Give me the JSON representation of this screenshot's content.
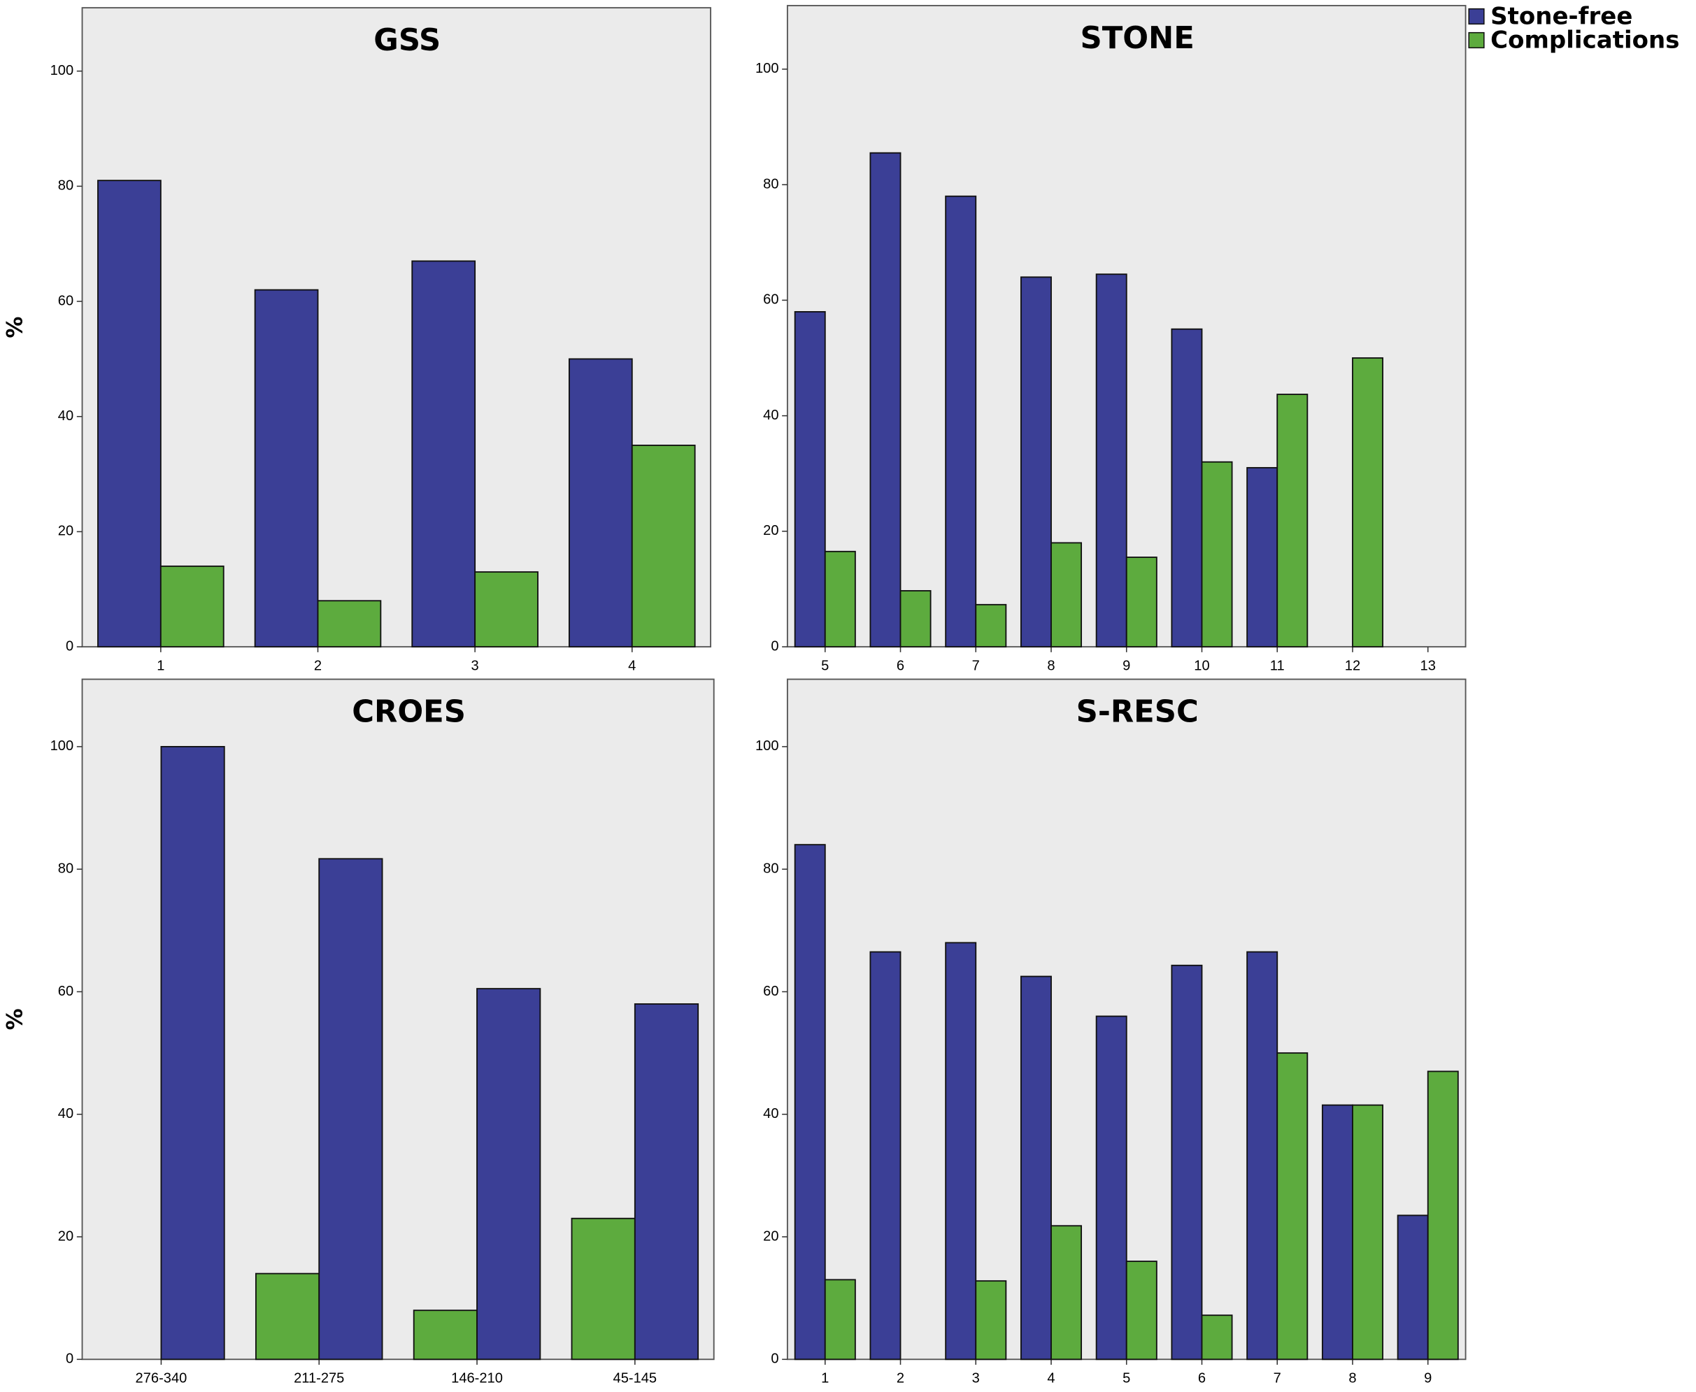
{
  "chart_data": [
    {
      "type": "bar",
      "title": "GSS",
      "ylabel": "%",
      "categories": [
        "1",
        "2",
        "3",
        "4"
      ],
      "series": [
        {
          "name": "Stone-free",
          "color": "#3b3f96",
          "values": [
            81,
            62,
            67,
            50
          ]
        },
        {
          "name": "Complications",
          "color": "#5dab3e",
          "values": [
            14,
            8,
            13,
            35
          ]
        }
      ],
      "ylim": [
        0,
        111
      ],
      "yticks": [
        0,
        20,
        40,
        60,
        80,
        100
      ]
    },
    {
      "type": "bar",
      "title": "STONE",
      "categories": [
        "5",
        "6",
        "7",
        "8",
        "9",
        "10",
        "11",
        "12",
        "13"
      ],
      "series": [
        {
          "name": "Stone-free",
          "color": "#3b3f96",
          "values": [
            58,
            85.5,
            78,
            64,
            64.5,
            55,
            31,
            null,
            null
          ]
        },
        {
          "name": "Complications",
          "color": "#5dab3e",
          "values": [
            16.5,
            9.7,
            7.3,
            18,
            15.5,
            32,
            43.7,
            50,
            null
          ]
        }
      ],
      "ylim": [
        0,
        111
      ],
      "yticks": [
        0,
        20,
        40,
        60,
        80,
        100
      ]
    },
    {
      "type": "bar",
      "title": "CROES",
      "ylabel": "%",
      "categories": [
        "276-340",
        "211-275",
        "146-210",
        "45-145"
      ],
      "series": [
        {
          "name": "Complications",
          "color": "#5dab3e",
          "values": [
            null,
            14,
            8,
            23
          ]
        },
        {
          "name": "Stone-free",
          "color": "#3b3f96",
          "values": [
            100,
            81.7,
            60.5,
            58
          ]
        }
      ],
      "ylim": [
        0,
        111
      ],
      "yticks": [
        0,
        20,
        40,
        60,
        80,
        100
      ]
    },
    {
      "type": "bar",
      "title": "S-RESC",
      "categories": [
        "1",
        "2",
        "3",
        "4",
        "5",
        "6",
        "7",
        "8",
        "9"
      ],
      "series": [
        {
          "name": "Stone-free",
          "color": "#3b3f96",
          "values": [
            84,
            66.5,
            68,
            62.5,
            56,
            64.3,
            66.5,
            41.5,
            23.5
          ]
        },
        {
          "name": "Complications",
          "color": "#5dab3e",
          "values": [
            13,
            null,
            12.8,
            21.8,
            16,
            7.2,
            50,
            41.5,
            47
          ]
        }
      ],
      "ylim": [
        0,
        111
      ],
      "yticks": [
        0,
        20,
        40,
        60,
        80,
        100
      ]
    }
  ]
}
